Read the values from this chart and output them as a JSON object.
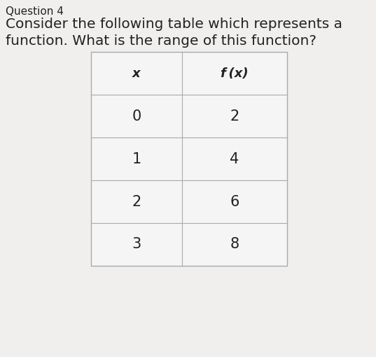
{
  "question_number": "Question 4",
  "question_text_line1": "Consider the following table which represents a",
  "question_text_line2": "function. What is the range of this function?",
  "col1_header": "x",
  "col2_header": "f (x)",
  "x_values": [
    "0",
    "1",
    "2",
    "3"
  ],
  "fx_values": [
    "2",
    "4",
    "6",
    "8"
  ],
  "background_color": "#f0efee",
  "table_bg_color": "#f5f5f5",
  "text_color": "#222222",
  "header_fontsize": 13,
  "cell_fontsize": 15,
  "question_fontsize": 14.5
}
